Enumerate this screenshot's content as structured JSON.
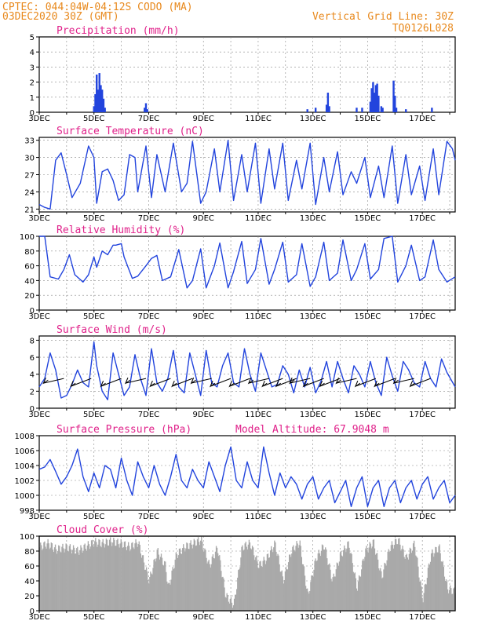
{
  "header": {
    "line1": "CPTEC:   044:04W-04:12S   CODO (MA)",
    "line2": "03DEC2020 30Z (GMT)",
    "right1": "Vertical Grid Line: 30Z",
    "right2": "TQ0126L028"
  },
  "colors": {
    "header": "#e8891d",
    "title": "#e0218a",
    "series": "#2244dd",
    "cloud": "#a9a9a9",
    "grid": "#888888"
  },
  "chart_data": [
    {
      "type": "bar",
      "title": "Precipitation (mm/h)",
      "x_ticks": [
        "3DEC",
        "5DEC",
        "7DEC",
        "9DEC",
        "11DEC",
        "13DEC",
        "15DEC",
        "17DEC"
      ],
      "y_ticks": [
        "0",
        "1",
        "2",
        "3",
        "4",
        "5"
      ],
      "ylim": [
        0,
        5
      ],
      "xlim": [
        0,
        15.2
      ],
      "bars": [
        {
          "x": 2.0,
          "v": 0.4
        },
        {
          "x": 2.05,
          "v": 1.2
        },
        {
          "x": 2.1,
          "v": 2.5
        },
        {
          "x": 2.15,
          "v": 1.5
        },
        {
          "x": 2.2,
          "v": 2.6
        },
        {
          "x": 2.25,
          "v": 1.8
        },
        {
          "x": 2.3,
          "v": 1.5
        },
        {
          "x": 2.35,
          "v": 0.9
        },
        {
          "x": 2.4,
          "v": 0.3
        },
        {
          "x": 3.85,
          "v": 0.3
        },
        {
          "x": 3.9,
          "v": 0.6
        },
        {
          "x": 3.95,
          "v": 0.2
        },
        {
          "x": 9.8,
          "v": 0.2
        },
        {
          "x": 10.1,
          "v": 0.3
        },
        {
          "x": 10.5,
          "v": 0.5
        },
        {
          "x": 10.55,
          "v": 1.3
        },
        {
          "x": 10.6,
          "v": 0.4
        },
        {
          "x": 11.6,
          "v": 0.3
        },
        {
          "x": 11.8,
          "v": 0.3
        },
        {
          "x": 12.1,
          "v": 0.7
        },
        {
          "x": 12.15,
          "v": 1.6
        },
        {
          "x": 12.2,
          "v": 2.0
        },
        {
          "x": 12.25,
          "v": 1.3
        },
        {
          "x": 12.3,
          "v": 1.8
        },
        {
          "x": 12.35,
          "v": 1.9
        },
        {
          "x": 12.4,
          "v": 1.1
        },
        {
          "x": 12.5,
          "v": 0.4
        },
        {
          "x": 12.55,
          "v": 0.3
        },
        {
          "x": 12.95,
          "v": 2.1
        },
        {
          "x": 13.0,
          "v": 1.1
        },
        {
          "x": 13.05,
          "v": 0.3
        },
        {
          "x": 13.4,
          "v": 0.2
        },
        {
          "x": 14.35,
          "v": 0.3
        }
      ]
    },
    {
      "type": "line",
      "title": "Surface Temperature (nC)",
      "x_ticks": [
        "3DEC",
        "5DEC",
        "7DEC",
        "9DEC",
        "11DEC",
        "13DEC",
        "15DEC",
        "17DEC"
      ],
      "y_ticks": [
        "21",
        "24",
        "27",
        "30",
        "33"
      ],
      "ylim": [
        20.5,
        33.5
      ],
      "xlim": [
        0,
        15.2
      ],
      "series": [
        {
          "x": [
            0,
            0.2,
            0.4,
            0.6,
            0.8,
            1.0,
            1.2,
            1.5,
            1.8,
            2.0,
            2.1,
            2.3,
            2.5,
            2.7,
            2.9,
            3.1,
            3.3,
            3.5,
            3.6,
            3.9,
            4.1,
            4.3,
            4.6,
            4.9,
            5.2,
            5.4,
            5.6,
            5.9,
            6.1,
            6.4,
            6.6,
            6.9,
            7.1,
            7.4,
            7.6,
            7.9,
            8.1,
            8.4,
            8.6,
            8.9,
            9.1,
            9.4,
            9.6,
            9.9,
            10.1,
            10.4,
            10.6,
            10.9,
            11.1,
            11.4,
            11.6,
            11.9,
            12.1,
            12.4,
            12.6,
            12.9,
            13.1,
            13.4,
            13.6,
            13.9,
            14.1,
            14.4,
            14.6,
            14.9,
            15.1,
            15.2
          ],
          "y": [
            21.8,
            21.3,
            21.0,
            29.5,
            30.8,
            27.0,
            23.0,
            25.5,
            32.0,
            30.0,
            22.0,
            27.5,
            28.0,
            26.0,
            22.5,
            23.5,
            30.5,
            30.0,
            24.0,
            32.0,
            23.0,
            30.5,
            24.0,
            32.5,
            24.0,
            25.5,
            32.8,
            22.0,
            24.0,
            31.5,
            24.0,
            33.0,
            22.5,
            30.5,
            24.0,
            32.5,
            22.0,
            31.5,
            24.5,
            32.5,
            22.5,
            29.5,
            24.5,
            32.5,
            21.8,
            30.0,
            24.0,
            31.0,
            23.5,
            27.5,
            25.5,
            30.0,
            23.0,
            28.5,
            23.0,
            32.0,
            22.0,
            30.5,
            23.5,
            28.5,
            22.5,
            31.5,
            23.5,
            32.8,
            31.5,
            29.5
          ]
        }
      ]
    },
    {
      "type": "line",
      "title": "Relative Humidity (%)",
      "x_ticks": [
        "3DEC",
        "5DEC",
        "7DEC",
        "9DEC",
        "11DEC",
        "13DEC",
        "15DEC",
        "17DEC"
      ],
      "y_ticks": [
        "0",
        "20",
        "40",
        "60",
        "80",
        "100"
      ],
      "ylim": [
        0,
        100
      ],
      "xlim": [
        0,
        15.2
      ],
      "series": [
        {
          "x": [
            0,
            0.2,
            0.4,
            0.7,
            0.9,
            1.1,
            1.3,
            1.6,
            1.8,
            2.0,
            2.1,
            2.3,
            2.5,
            2.7,
            2.8,
            3.0,
            3.1,
            3.4,
            3.6,
            3.9,
            4.1,
            4.3,
            4.5,
            4.8,
            5.1,
            5.4,
            5.6,
            5.9,
            6.1,
            6.4,
            6.6,
            6.9,
            7.1,
            7.4,
            7.6,
            7.9,
            8.1,
            8.4,
            8.6,
            8.9,
            9.1,
            9.4,
            9.6,
            9.9,
            10.1,
            10.4,
            10.6,
            10.9,
            11.1,
            11.4,
            11.6,
            11.9,
            12.1,
            12.4,
            12.6,
            12.9,
            13.1,
            13.4,
            13.6,
            13.9,
            14.1,
            14.4,
            14.6,
            14.9,
            15.2
          ],
          "y": [
            100,
            100,
            45,
            42,
            55,
            75,
            48,
            38,
            48,
            72,
            58,
            80,
            75,
            88,
            88,
            90,
            72,
            43,
            46,
            60,
            70,
            74,
            40,
            45,
            82,
            30,
            40,
            83,
            30,
            60,
            91,
            30,
            52,
            93,
            36,
            55,
            97,
            35,
            55,
            92,
            38,
            48,
            90,
            32,
            45,
            92,
            40,
            50,
            95,
            40,
            55,
            90,
            42,
            55,
            97,
            100,
            38,
            60,
            88,
            40,
            45,
            95,
            55,
            38,
            45
          ]
        }
      ]
    },
    {
      "type": "line",
      "title": "Surface Wind (m/s)",
      "x_ticks": [
        "3DEC",
        "5DEC",
        "7DEC",
        "9DEC",
        "11DEC",
        "13DEC",
        "15DEC",
        "17DEC"
      ],
      "y_ticks": [
        "0",
        "2",
        "4",
        "6",
        "8"
      ],
      "ylim": [
        0,
        8.5
      ],
      "xlim": [
        0,
        15.2
      ],
      "series": [
        {
          "x": [
            0,
            0.2,
            0.4,
            0.6,
            0.8,
            1.0,
            1.2,
            1.4,
            1.6,
            1.8,
            2.0,
            2.1,
            2.3,
            2.5,
            2.7,
            2.9,
            3.1,
            3.3,
            3.5,
            3.7,
            3.9,
            4.1,
            4.3,
            4.5,
            4.7,
            4.9,
            5.1,
            5.3,
            5.5,
            5.7,
            5.9,
            6.1,
            6.3,
            6.5,
            6.7,
            6.9,
            7.1,
            7.3,
            7.5,
            7.7,
            7.9,
            8.1,
            8.3,
            8.5,
            8.7,
            8.9,
            9.1,
            9.3,
            9.5,
            9.7,
            9.9,
            10.1,
            10.3,
            10.5,
            10.7,
            10.9,
            11.1,
            11.3,
            11.5,
            11.7,
            11.9,
            12.1,
            12.3,
            12.5,
            12.7,
            12.9,
            13.1,
            13.3,
            13.5,
            13.7,
            13.9,
            14.1,
            14.3,
            14.5,
            14.7,
            14.9,
            15.2
          ],
          "y": [
            2.5,
            3.5,
            6.5,
            4.5,
            1.2,
            1.5,
            2.8,
            4.5,
            3.0,
            2.5,
            7.8,
            5.0,
            2.0,
            1.0,
            6.5,
            4.0,
            1.5,
            2.5,
            6.3,
            3.5,
            1.5,
            7.0,
            3.0,
            2.0,
            3.5,
            6.8,
            2.5,
            1.8,
            6.5,
            4.0,
            1.5,
            6.8,
            3.0,
            2.5,
            5.0,
            6.5,
            3.0,
            2.5,
            7.0,
            4.0,
            2.0,
            6.5,
            4.5,
            2.5,
            2.8,
            5.0,
            4.0,
            1.8,
            4.5,
            2.5,
            4.8,
            1.8,
            3.2,
            5.5,
            2.5,
            5.5,
            3.5,
            1.8,
            5.0,
            4.0,
            2.5,
            5.5,
            3.0,
            1.5,
            6.0,
            3.8,
            2.0,
            5.5,
            4.5,
            3.0,
            2.5,
            5.5,
            3.5,
            2.5,
            5.8,
            4.2,
            2.5
          ]
        }
      ],
      "vectors_x": [
        0.9,
        1.9,
        3.0,
        3.9,
        4.8,
        5.6,
        6.3,
        7.0,
        7.7,
        8.4,
        8.9,
        9.4,
        9.9,
        10.4,
        11.0,
        11.6,
        12.3,
        13.0,
        13.7,
        14.3
      ]
    },
    {
      "type": "line",
      "title": "Surface Pressure (hPa)",
      "annotation": "Model Altitude: 67.9048 m",
      "x_ticks": [
        "3DEC",
        "5DEC",
        "7DEC",
        "9DEC",
        "11DEC",
        "13DEC",
        "15DEC",
        "17DEC"
      ],
      "y_ticks": [
        "998",
        "1000",
        "1002",
        "1004",
        "1006",
        "1008"
      ],
      "ylim": [
        998,
        1008
      ],
      "xlim": [
        0,
        15.2
      ],
      "series": [
        {
          "x": [
            0,
            0.2,
            0.4,
            0.6,
            0.8,
            1.0,
            1.2,
            1.4,
            1.6,
            1.8,
            2.0,
            2.2,
            2.4,
            2.6,
            2.8,
            3.0,
            3.2,
            3.4,
            3.6,
            3.8,
            4.0,
            4.2,
            4.4,
            4.6,
            4.8,
            5.0,
            5.2,
            5.4,
            5.6,
            5.8,
            6.0,
            6.2,
            6.4,
            6.6,
            6.8,
            7.0,
            7.2,
            7.4,
            7.6,
            7.8,
            8.0,
            8.2,
            8.4,
            8.6,
            8.8,
            9.0,
            9.2,
            9.4,
            9.6,
            9.8,
            10.0,
            10.2,
            10.4,
            10.6,
            10.8,
            11.0,
            11.2,
            11.4,
            11.6,
            11.8,
            12.0,
            12.2,
            12.4,
            12.6,
            12.8,
            13.0,
            13.2,
            13.4,
            13.6,
            13.8,
            14.0,
            14.2,
            14.4,
            14.6,
            14.8,
            15.0,
            15.2
          ],
          "y": [
            1003.5,
            1003.8,
            1004.8,
            1003.2,
            1001.5,
            1002.5,
            1004.0,
            1006.2,
            1002.5,
            1000.5,
            1003.0,
            1001.0,
            1004.0,
            1003.5,
            1001.0,
            1005.0,
            1002.0,
            1000.0,
            1004.5,
            1002.5,
            1001.0,
            1004.0,
            1001.5,
            1000.0,
            1002.5,
            1005.5,
            1002.0,
            1001.0,
            1003.5,
            1002.0,
            1001.0,
            1004.5,
            1002.5,
            1000.5,
            1004.0,
            1006.5,
            1002.0,
            1001.0,
            1004.5,
            1002.0,
            1001.0,
            1006.5,
            1003.0,
            1000.0,
            1003.0,
            1001.0,
            1002.5,
            1001.5,
            999.5,
            1001.5,
            1002.5,
            999.5,
            1001.0,
            1002.0,
            999.0,
            1000.5,
            1002.0,
            998.5,
            1001.0,
            1002.5,
            998.5,
            1001.0,
            1002.0,
            998.5,
            1001.0,
            1002.0,
            999.0,
            1001.0,
            1002.0,
            999.5,
            1001.5,
            1002.5,
            999.5,
            1001.0,
            1002.0,
            999.0,
            1000.0
          ]
        }
      ]
    },
    {
      "type": "area",
      "title": "Cloud Cover (%)",
      "x_ticks": [
        "3DEC",
        "5DEC",
        "7DEC",
        "9DEC",
        "11DEC",
        "13DEC",
        "15DEC",
        "17DEC"
      ],
      "y_ticks": [
        "0",
        "20",
        "40",
        "60",
        "80",
        "100"
      ],
      "ylim": [
        0,
        100
      ],
      "xlim": [
        0,
        15.2
      ],
      "series": [
        {
          "x": [
            0,
            0.3,
            0.6,
            1.0,
            1.4,
            1.8,
            2.0,
            2.3,
            2.6,
            3.0,
            3.3,
            3.6,
            4.0,
            4.3,
            4.6,
            4.7,
            5.0,
            5.3,
            5.6,
            5.9,
            6.2,
            6.5,
            6.8,
            7.1,
            7.4,
            7.7,
            8.0,
            8.3,
            8.6,
            8.9,
            9.2,
            9.5,
            9.8,
            10.1,
            10.4,
            10.7,
            11.0,
            11.3,
            11.6,
            11.9,
            12.2,
            12.5,
            12.8,
            13.1,
            13.4,
            13.7,
            14.0,
            14.3,
            14.6,
            14.9,
            15.2
          ],
          "y": [
            85,
            90,
            82,
            85,
            80,
            88,
            92,
            90,
            93,
            90,
            85,
            92,
            40,
            80,
            60,
            30,
            75,
            85,
            90,
            95,
            60,
            85,
            20,
            8,
            85,
            90,
            60,
            70,
            90,
            40,
            80,
            92,
            20,
            70,
            88,
            40,
            75,
            90,
            30,
            80,
            92,
            45,
            85,
            95,
            70,
            90,
            15,
            75,
            85,
            30,
            25
          ]
        }
      ]
    }
  ]
}
